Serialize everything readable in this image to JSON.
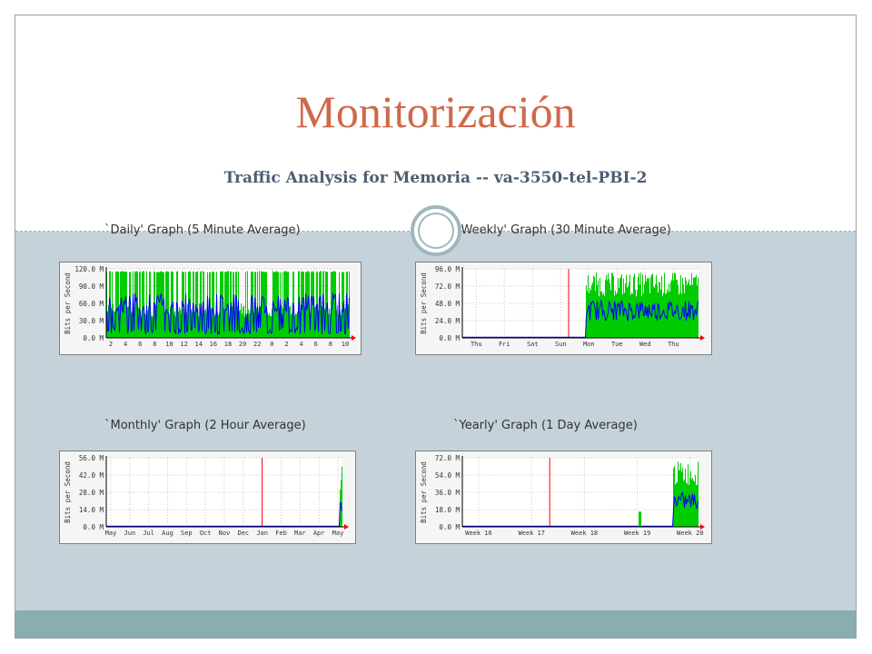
{
  "slide": {
    "title": "Monitorización",
    "subtitle": "Traffic Analysis for Memoria -- va-3550-tel-PBI-2"
  },
  "colors": {
    "title": "#d0684a",
    "subtitle": "#4c5d73",
    "panel": "#c5d2d9",
    "footer": "#8aaeb0",
    "in_traffic": "#00cc00",
    "out_traffic": "#0000ff",
    "marker": "#ff0000"
  },
  "graphs": [
    {
      "id": "daily",
      "title": "`Daily' Graph (5 Minute Average)",
      "ylabel": "Bits per Second",
      "yticks": [
        "120.0 M",
        "90.0 M",
        "60.0 M",
        "30.0 M",
        "0.0 M"
      ],
      "xticks": [
        "2",
        "4",
        "6",
        "8",
        "10",
        "12",
        "14",
        "16",
        "18",
        "20",
        "22",
        "0",
        "2",
        "4",
        "6",
        "8",
        "10"
      ]
    },
    {
      "id": "weekly",
      "title": "`Weekly' Graph (30 Minute Average)",
      "ylabel": "Bits per Second",
      "yticks": [
        "96.0 M",
        "72.0 M",
        "48.0 M",
        "24.0 M",
        "0.0 M"
      ],
      "xticks": [
        "Thu",
        "Fri",
        "Sat",
        "Sun",
        "Mon",
        "Tue",
        "Wed",
        "Thu"
      ]
    },
    {
      "id": "monthly",
      "title": "`Monthly' Graph (2 Hour Average)",
      "ylabel": "Bits per Second",
      "yticks": [
        "56.0 M",
        "42.0 M",
        "28.0 M",
        "14.0 M",
        "0.0 M"
      ],
      "xticks": [
        "May",
        "Jun",
        "Jul",
        "Aug",
        "Sep",
        "Oct",
        "Nov",
        "Dec",
        "Jan",
        "Feb",
        "Mar",
        "Apr",
        "May"
      ]
    },
    {
      "id": "yearly",
      "title": "`Yearly' Graph (1 Day Average)",
      "ylabel": "Bits per Second",
      "yticks": [
        "72.0 M",
        "54.0 M",
        "36.0 M",
        "18.0 M",
        "0.0 M"
      ],
      "xticks": [
        "Week 16",
        "Week 17",
        "Week 18",
        "Week 19",
        "Week 20"
      ]
    }
  ]
}
